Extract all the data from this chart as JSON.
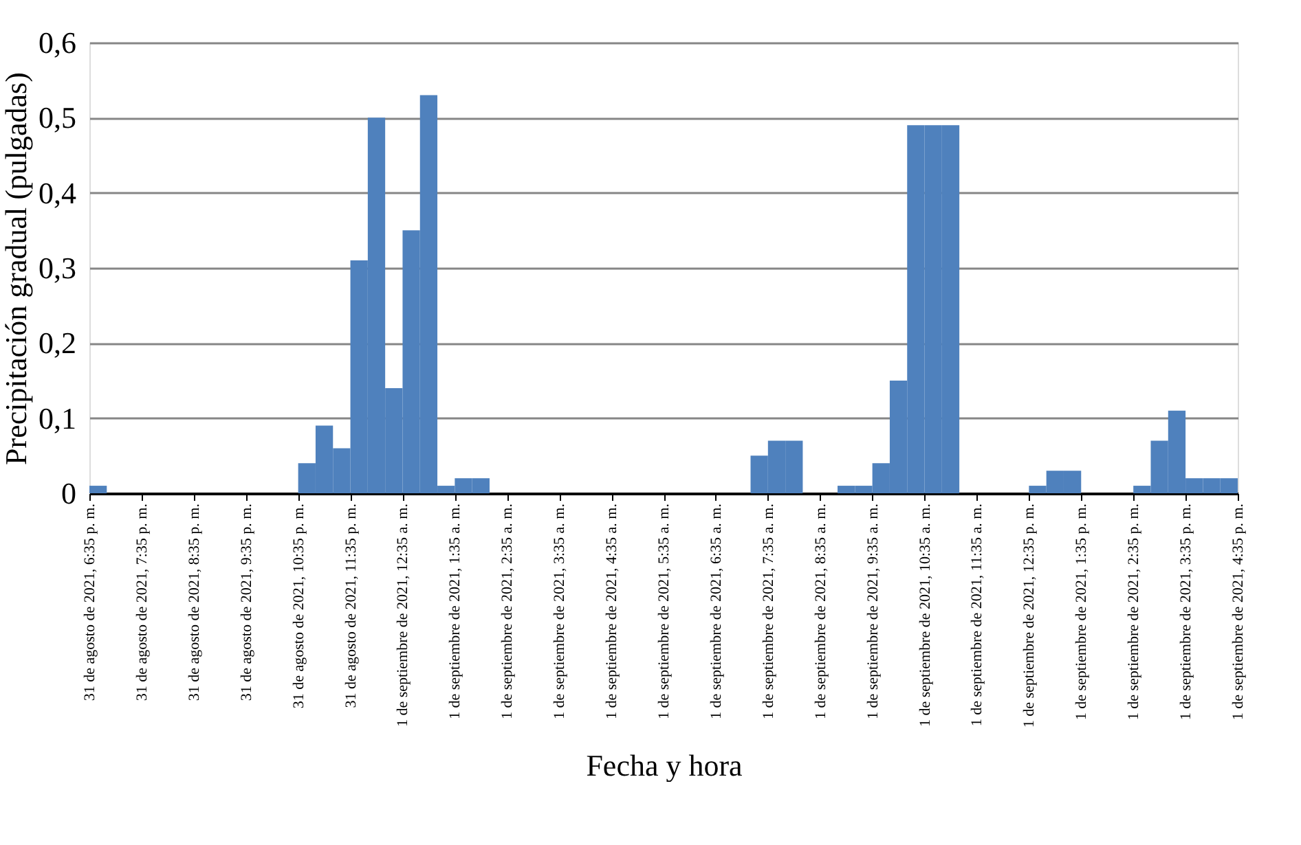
{
  "chart_data": {
    "type": "bar",
    "xlabel": "Fecha y hora",
    "ylabel": "Precipitación gradual (pulgadas)",
    "x": [
      "2021-08-31T18:45",
      "2021-08-31T19:05",
      "2021-08-31T19:25",
      "2021-08-31T19:45",
      "2021-08-31T20:05",
      "2021-08-31T20:25",
      "2021-08-31T20:45",
      "2021-08-31T21:05",
      "2021-08-31T21:25",
      "2021-08-31T21:45",
      "2021-08-31T22:05",
      "2021-08-31T22:25",
      "2021-08-31T22:45",
      "2021-08-31T23:05",
      "2021-08-31T23:25",
      "2021-08-31T23:45",
      "2021-09-01T00:05",
      "2021-09-01T00:25",
      "2021-09-01T00:45",
      "2021-09-01T01:05",
      "2021-09-01T01:25",
      "2021-09-01T01:45",
      "2021-09-01T02:05",
      "2021-09-01T02:25",
      "2021-09-01T02:45",
      "2021-09-01T03:05",
      "2021-09-01T03:25",
      "2021-09-01T03:45",
      "2021-09-01T04:05",
      "2021-09-01T04:25",
      "2021-09-01T04:45",
      "2021-09-01T05:05",
      "2021-09-01T05:25",
      "2021-09-01T05:45",
      "2021-09-01T06:05",
      "2021-09-01T06:25",
      "2021-09-01T06:45",
      "2021-09-01T07:05",
      "2021-09-01T07:25",
      "2021-09-01T07:45",
      "2021-09-01T08:05",
      "2021-09-01T08:25",
      "2021-09-01T08:45",
      "2021-09-01T09:05",
      "2021-09-01T09:25",
      "2021-09-01T09:45",
      "2021-09-01T10:05",
      "2021-09-01T10:25",
      "2021-09-01T10:45",
      "2021-09-01T11:05",
      "2021-09-01T11:25",
      "2021-09-01T11:45",
      "2021-09-01T12:05",
      "2021-09-01T12:25",
      "2021-09-01T12:45",
      "2021-09-01T13:05",
      "2021-09-01T13:25",
      "2021-09-01T13:45",
      "2021-09-01T14:05",
      "2021-09-01T14:25",
      "2021-09-01T14:45",
      "2021-09-01T15:05",
      "2021-09-01T15:25",
      "2021-09-01T15:45",
      "2021-09-01T16:05",
      "2021-09-01T16:25"
    ],
    "values": [
      0.01,
      0,
      0,
      0,
      0,
      0,
      0,
      0,
      0,
      0,
      0,
      0,
      0.04,
      0.09,
      0.06,
      0.31,
      0.5,
      0.14,
      0.35,
      0.53,
      0.01,
      0.02,
      0.02,
      0,
      0,
      0,
      0,
      0,
      0,
      0,
      0,
      0,
      0,
      0,
      0,
      0,
      0,
      0,
      0.05,
      0.07,
      0.07,
      0,
      0,
      0.01,
      0.01,
      0.04,
      0.15,
      0.49,
      0.49,
      0.49,
      0,
      0,
      0,
      0,
      0.01,
      0.03,
      0.03,
      0,
      0,
      0,
      0.01,
      0.07,
      0.11,
      0.02,
      0.02,
      0.02
    ],
    "color": "#4f81bd",
    "xlim": [
      "2021-08-31T18:35",
      "2021-09-01T16:35"
    ],
    "xticks": [
      {
        "value": "2021-08-31T18:35",
        "label": "31 de agosto de 2021, 6:35 p. m."
      },
      {
        "value": "2021-08-31T19:35",
        "label": "31 de agosto de 2021, 7:35 p. m."
      },
      {
        "value": "2021-08-31T20:35",
        "label": "31 de agosto de 2021, 8:35 p. m."
      },
      {
        "value": "2021-08-31T21:35",
        "label": "31 de agosto de 2021, 9:35 p. m."
      },
      {
        "value": "2021-08-31T22:35",
        "label": "31 de agosto de 2021, 10:35 p. m."
      },
      {
        "value": "2021-08-31T23:35",
        "label": "31 de agosto de 2021, 11:35 p. m."
      },
      {
        "value": "2021-09-01T00:35",
        "label": "1 de septiembre de 2021, 12:35 a. m."
      },
      {
        "value": "2021-09-01T01:35",
        "label": "1 de septiembre de 2021, 1:35 a. m."
      },
      {
        "value": "2021-09-01T02:35",
        "label": "1 de septiembre de 2021, 2:35 a. m."
      },
      {
        "value": "2021-09-01T03:35",
        "label": "1 de septiembre de 2021, 3:35 a. m."
      },
      {
        "value": "2021-09-01T04:35",
        "label": "1 de septiembre de 2021, 4:35 a. m."
      },
      {
        "value": "2021-09-01T05:35",
        "label": "1 de septiembre de 2021, 5:35 a. m."
      },
      {
        "value": "2021-09-01T06:35",
        "label": "1 de septiembre de 2021, 6:35 a. m."
      },
      {
        "value": "2021-09-01T07:35",
        "label": "1 de septiembre de 2021, 7:35 a. m."
      },
      {
        "value": "2021-09-01T08:35",
        "label": "1 de septiembre de 2021, 8:35 a. m."
      },
      {
        "value": "2021-09-01T09:35",
        "label": "1 de septiembre de 2021, 9:35 a. m."
      },
      {
        "value": "2021-09-01T10:35",
        "label": "1 de septiembre de 2021, 10:35 a. m."
      },
      {
        "value": "2021-09-01T11:35",
        "label": "1 de septiembre de 2021, 11:35 a. m."
      },
      {
        "value": "2021-09-01T12:35",
        "label": "1 de septiembre de 2021, 12:35 p. m."
      },
      {
        "value": "2021-09-01T13:35",
        "label": "1 de septiembre de 2021, 1:35 p. m."
      },
      {
        "value": "2021-09-01T14:35",
        "label": "1 de septiembre de 2021, 2:35 p. m."
      },
      {
        "value": "2021-09-01T15:35",
        "label": "1 de septiembre de 2021, 3:35 p. m."
      },
      {
        "value": "2021-09-01T16:35",
        "label": "1 de septiembre de 2021, 4:35 p. m."
      }
    ],
    "ylim": [
      0,
      0.6
    ],
    "yticks": [
      0,
      {
        "value": 0.1,
        "label": "0,1"
      },
      {
        "value": 0.2,
        "label": "0,2"
      },
      {
        "value": 0.3,
        "label": "0,3"
      },
      {
        "value": 0.4,
        "label": "0,4"
      },
      {
        "value": 0.5,
        "label": "0,5"
      },
      {
        "value": 0.6,
        "label": "0,6"
      }
    ],
    "grid": "y"
  }
}
